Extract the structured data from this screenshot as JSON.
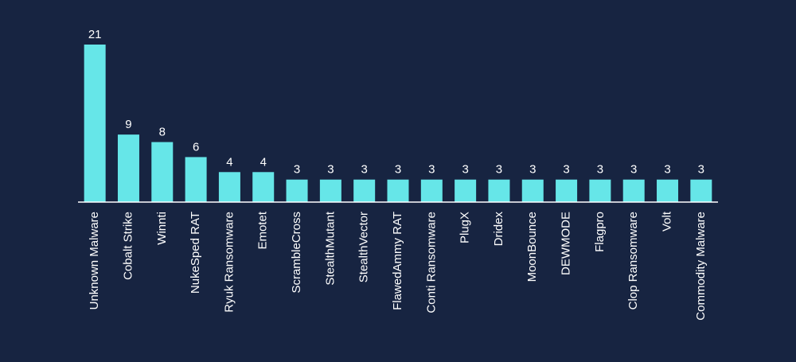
{
  "chart_data": {
    "type": "bar",
    "title": "",
    "xlabel": "",
    "ylabel": "",
    "ylim": [
      0,
      21
    ],
    "grid": false,
    "colors": {
      "background": "#172441",
      "bar": "#66e6e8",
      "text": "#ffffff",
      "axis": "#ffffff"
    },
    "categories": [
      "Unknown Malware",
      "Cobalt Strike",
      "Winnti",
      "NukeSped RAT",
      "Ryuk Ransomware",
      "Emotet",
      "ScrambleCross",
      "StealthMutant",
      "StealthVector",
      "FlawedAmmy RAT",
      "Conti Ransomware",
      "PlugX",
      "Dridex",
      "MoonBounce",
      "DEWMODE",
      "Flagpro",
      "Clop Ransomware",
      "Volt",
      "Commodity Malware"
    ],
    "values": [
      21,
      9,
      8,
      6,
      4,
      4,
      3,
      3,
      3,
      3,
      3,
      3,
      3,
      3,
      3,
      3,
      3,
      3,
      3
    ]
  }
}
